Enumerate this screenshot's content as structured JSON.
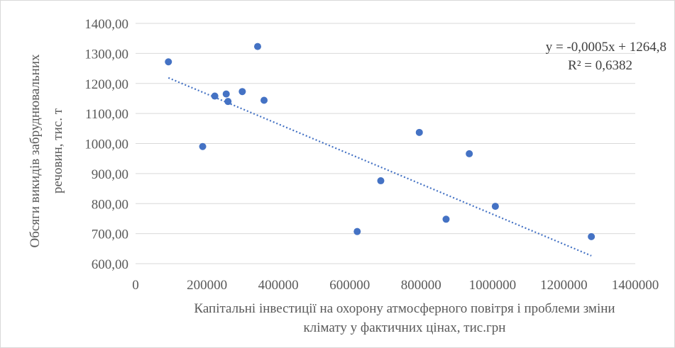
{
  "chart_data": {
    "type": "scatter",
    "x_label_lines": [
      "Капітальні інвестиції  на охорону атмосферного повітря і проблеми зміни",
      "клімату  у фактичних цінах, тис.грн"
    ],
    "y_label_lines": [
      "Обсяги викидів забруднювальних",
      "речовин, тис. т"
    ],
    "xlim": [
      0,
      1400000
    ],
    "ylim": [
      600,
      1400
    ],
    "x_ticks": [
      0,
      200000,
      400000,
      600000,
      800000,
      1000000,
      1200000,
      1400000
    ],
    "x_tick_labels": [
      "0",
      "200000",
      "400000",
      "600000",
      "800000",
      "1000000",
      "1200000",
      "1400000"
    ],
    "y_ticks": [
      600,
      700,
      800,
      900,
      1000,
      1100,
      1200,
      1300,
      1400
    ],
    "y_tick_labels": [
      "600,00",
      "700,00",
      "800,00",
      "900,00",
      "1000,00",
      "1100,00",
      "1200,00",
      "1300,00",
      "1400,00"
    ],
    "grid": "horizontal",
    "points": [
      {
        "x": 92000,
        "y": 1272
      },
      {
        "x": 188000,
        "y": 990
      },
      {
        "x": 222000,
        "y": 1158
      },
      {
        "x": 254000,
        "y": 1165
      },
      {
        "x": 259000,
        "y": 1140
      },
      {
        "x": 299000,
        "y": 1173
      },
      {
        "x": 342000,
        "y": 1323
      },
      {
        "x": 360000,
        "y": 1144
      },
      {
        "x": 621000,
        "y": 707
      },
      {
        "x": 687000,
        "y": 876
      },
      {
        "x": 795000,
        "y": 1037
      },
      {
        "x": 870000,
        "y": 748
      },
      {
        "x": 935000,
        "y": 966
      },
      {
        "x": 1008000,
        "y": 791
      },
      {
        "x": 1277000,
        "y": 690
      }
    ],
    "trendline": {
      "type": "linear",
      "style": "dotted",
      "slope": -0.0005,
      "intercept": 1264.8,
      "x_from": 92000,
      "x_to": 1277000,
      "equation": "y = -0,0005x + 1264,8",
      "r_squared": "R² = 0,6382"
    },
    "colors": {
      "marker": "#4472c4",
      "trendline": "#4472c4",
      "grid": "#d9d9d9",
      "text": "#595959"
    }
  }
}
